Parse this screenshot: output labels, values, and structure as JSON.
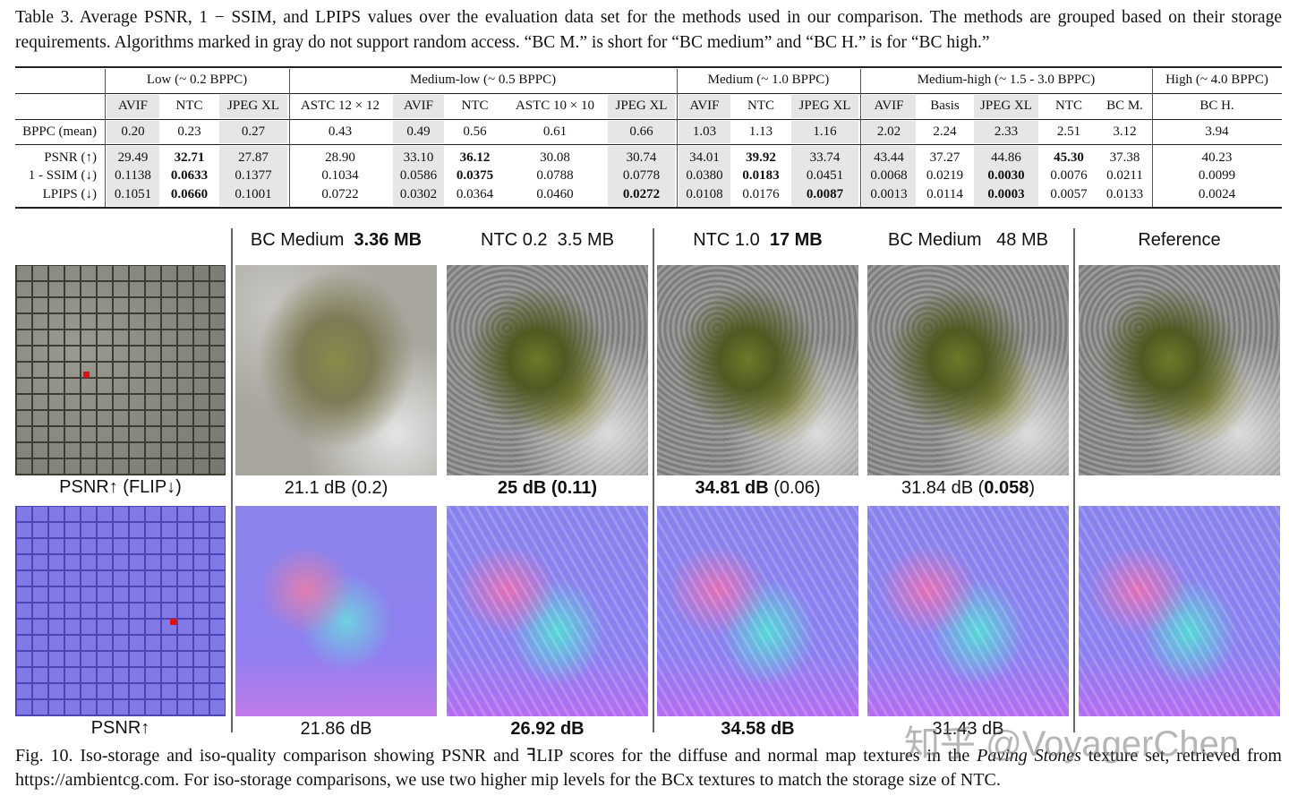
{
  "table": {
    "caption": "Table 3.  Average PSNR, 1 − SSIM, and LPIPS values over the evaluation data set for the methods used in our comparison. The methods are grouped based on their storage requirements. Algorithms marked in gray do not support random access. “BC M.” is short for “BC medium” and “BC H.” is for “BC high.”",
    "row_labels": [
      "BPPC (mean)",
      "PSNR (↑)",
      "1 - SSIM (↓)",
      "LPIPS (↓)"
    ],
    "groups": [
      {
        "label": "Low (~ 0.2 BPPC)",
        "columns": [
          {
            "method": "AVIF",
            "gray": true,
            "values": [
              "0.20",
              "29.49",
              "0.1138",
              "0.1051"
            ]
          },
          {
            "method": "NTC",
            "values": [
              "0.23",
              {
                "text": "32.71",
                "bold": true
              },
              {
                "text": "0.0633",
                "bold": true
              },
              {
                "text": "0.0660",
                "bold": true
              }
            ]
          },
          {
            "method": "JPEG XL",
            "gray": true,
            "values": [
              "0.27",
              "27.87",
              "0.1377",
              "0.1001"
            ]
          }
        ]
      },
      {
        "label": "Medium-low (~ 0.5 BPPC)",
        "columns": [
          {
            "method": "ASTC 12 × 12",
            "values": [
              "0.43",
              "28.90",
              "0.1034",
              "0.0722"
            ]
          },
          {
            "method": "AVIF",
            "gray": true,
            "values": [
              "0.49",
              "33.10",
              "0.0586",
              "0.0302"
            ]
          },
          {
            "method": "NTC",
            "values": [
              "0.56",
              {
                "text": "36.12",
                "bold": true
              },
              {
                "text": "0.0375",
                "bold": true
              },
              "0.0364"
            ]
          },
          {
            "method": "ASTC 10 × 10",
            "values": [
              "0.61",
              "30.08",
              "0.0788",
              "0.0460"
            ]
          },
          {
            "method": "JPEG XL",
            "gray": true,
            "values": [
              "0.66",
              "30.74",
              "0.0778",
              {
                "text": "0.0272",
                "bold": true
              }
            ]
          }
        ]
      },
      {
        "label": "Medium (~ 1.0 BPPC)",
        "columns": [
          {
            "method": "AVIF",
            "gray": true,
            "values": [
              "1.03",
              "34.01",
              "0.0380",
              "0.0108"
            ]
          },
          {
            "method": "NTC",
            "values": [
              "1.13",
              {
                "text": "39.92",
                "bold": true
              },
              {
                "text": "0.0183",
                "bold": true
              },
              "0.0176"
            ]
          },
          {
            "method": "JPEG XL",
            "gray": true,
            "values": [
              "1.16",
              "33.74",
              "0.0451",
              {
                "text": "0.0087",
                "bold": true
              }
            ]
          }
        ]
      },
      {
        "label": "Medium-high (~ 1.5 - 3.0 BPPC)",
        "columns": [
          {
            "method": "AVIF",
            "gray": true,
            "values": [
              "2.02",
              "43.44",
              "0.0068",
              "0.0013"
            ]
          },
          {
            "method": "Basis",
            "values": [
              "2.24",
              "37.27",
              "0.0219",
              "0.0114"
            ]
          },
          {
            "method": "JPEG XL",
            "gray": true,
            "values": [
              "2.33",
              "44.86",
              {
                "text": "0.0030",
                "bold": true
              },
              {
                "text": "0.0003",
                "bold": true
              }
            ]
          },
          {
            "method": "NTC",
            "values": [
              "2.51",
              {
                "text": "45.30",
                "bold": true
              },
              "0.0076",
              "0.0057"
            ]
          },
          {
            "method": "BC M.",
            "values": [
              "3.12",
              "37.38",
              "0.0211",
              "0.0133"
            ]
          }
        ]
      },
      {
        "label": "High (~ 4.0 BPPC)",
        "columns": [
          {
            "method": "BC H.",
            "values": [
              "3.94",
              "40.23",
              "0.0099",
              "0.0024"
            ]
          }
        ]
      }
    ]
  },
  "figure": {
    "columns": [
      [
        {
          "text": "BC Medium  "
        },
        {
          "text": "3.36 MB",
          "bold": true
        }
      ],
      "NTC 0.2  3.5 MB",
      [
        {
          "text": "NTC 1.0  "
        },
        {
          "text": "17 MB",
          "bold": true
        }
      ],
      "BC Medium   48 MB",
      "Reference"
    ],
    "rows": [
      {
        "label": "PSNR↑ (FLIP↓)",
        "cells": [
          "21.1 dB (0.2)",
          [
            {
              "text": "25 dB (0.11)",
              "bold": true
            }
          ],
          [
            {
              "text": "34.81 dB",
              "bold": true
            },
            {
              "text": " (0.06)"
            }
          ],
          [
            {
              "text": "31.84 dB ("
            },
            {
              "text": "0.058",
              "bold": true
            },
            {
              "text": ")"
            }
          ]
        ]
      },
      {
        "label": "PSNR↑",
        "cells": [
          "21.86 dB",
          [
            {
              "text": "26.92 dB",
              "bold": true
            }
          ],
          [
            {
              "text": "34.58 dB",
              "bold": true
            }
          ],
          "31.43 dB"
        ]
      }
    ],
    "caption": [
      {
        "text": "Fig. 10.  Iso-storage and iso-quality comparison showing PSNR and ꟻLIP scores for the diffuse and normal map textures in the "
      },
      {
        "text": "Paving Stones",
        "italic": true
      },
      {
        "text": " texture set, retrieved from https://ambientcg.com. For iso-storage comparisons, we use two higher mip levels for the BCx textures to match the storage size of NTC."
      }
    ],
    "watermark": "知乎 @VoyagerChen"
  }
}
